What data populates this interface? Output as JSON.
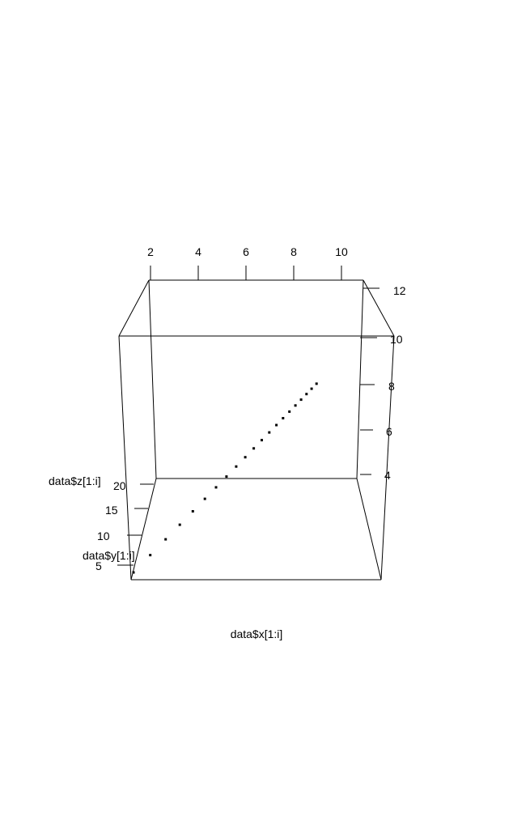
{
  "chart_data": {
    "type": "scatter3d",
    "title": "",
    "xlabel": "data$x[1:i]",
    "ylabel": "data$y[1:i]",
    "zlabel": "data$z[1:i]",
    "x_ticks": [
      "2",
      "4",
      "6",
      "8",
      "10"
    ],
    "y_ticks": [
      "4",
      "6",
      "8",
      "10",
      "12"
    ],
    "z_ticks": [
      "5",
      "10",
      "15",
      "20"
    ],
    "point_color": "#000000",
    "grid": false,
    "legend": "none",
    "points": [
      {
        "x": 1,
        "y": 1,
        "z": 1
      },
      {
        "x": 2,
        "y": 2,
        "z": 2
      },
      {
        "x": 3,
        "y": 3,
        "z": 3
      },
      {
        "x": 4,
        "y": 4,
        "z": 4
      },
      {
        "x": 5,
        "y": 5,
        "z": 5
      },
      {
        "x": 6,
        "y": 6,
        "z": 6
      },
      {
        "x": 7,
        "y": 7,
        "z": 7
      },
      {
        "x": 8,
        "y": 8,
        "z": 8
      },
      {
        "x": 9,
        "y": 9,
        "z": 9
      },
      {
        "x": 10,
        "y": 10,
        "z": 10
      },
      {
        "x": 11,
        "y": 11,
        "z": 11
      },
      {
        "x": 12,
        "y": 12,
        "z": 12
      },
      {
        "x": 13,
        "y": 13,
        "z": 13
      },
      {
        "x": 14,
        "y": 14,
        "z": 14
      },
      {
        "x": 15,
        "y": 15,
        "z": 15
      },
      {
        "x": 16,
        "y": 16,
        "z": 16
      },
      {
        "x": 17,
        "y": 17,
        "z": 17
      },
      {
        "x": 18,
        "y": 18,
        "z": 18
      },
      {
        "x": 19,
        "y": 19,
        "z": 19
      },
      {
        "x": 20,
        "y": 20,
        "z": 20
      },
      {
        "x": 21,
        "y": 21,
        "z": 21
      }
    ]
  }
}
